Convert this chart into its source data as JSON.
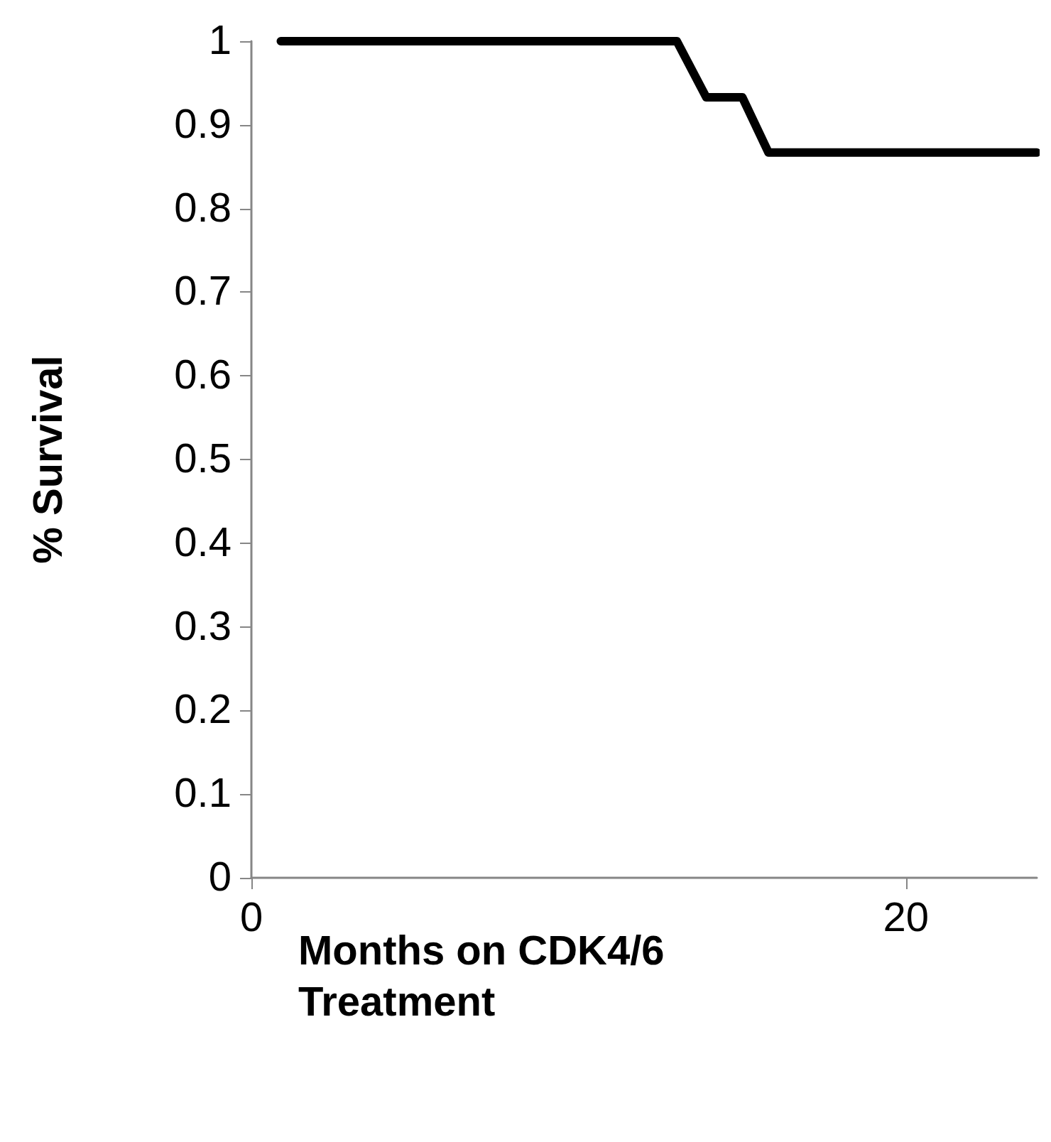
{
  "chart_data": {
    "type": "line",
    "xlabel": "Months on CDK4/6 Treatment",
    "ylabel": "% Survival",
    "series": [
      {
        "color": "#000000",
        "x": [
          0.9,
          13.0,
          13.9,
          15.0,
          15.8,
          24
        ],
        "values": [
          1,
          1,
          0.933,
          0.933,
          0.867,
          0.867
        ]
      }
    ],
    "xlim": [
      0,
      24
    ],
    "xticks": [
      0,
      20
    ],
    "ylim": [
      0,
      1
    ],
    "yticks": [
      0,
      0.1,
      0.2,
      0.3,
      0.4,
      0.5,
      0.6,
      0.7,
      0.8,
      0.9,
      1
    ],
    "grid": false,
    "marker": "none",
    "line_style": "solid"
  }
}
